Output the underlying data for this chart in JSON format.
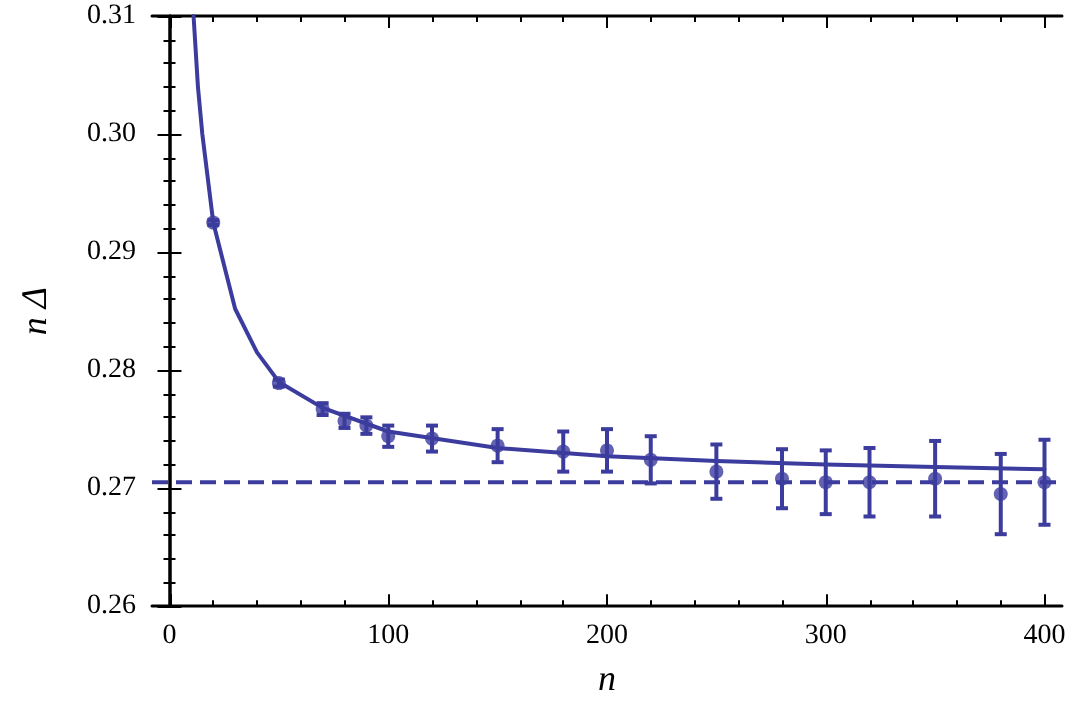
{
  "chart_data": {
    "type": "scatter",
    "xlabel": "n",
    "ylabel": "n Δ",
    "xlim": [
      -8,
      408
    ],
    "ylim": [
      0.26,
      0.31
    ],
    "xticks": [
      0,
      100,
      200,
      300,
      400
    ],
    "yticks": [
      0.26,
      0.27,
      0.28,
      0.29,
      {
        "value": 0.3,
        "label": "0.30"
      },
      0.31
    ],
    "grid": false,
    "marker": "circle",
    "series": [
      {
        "color": "#3c3c9e",
        "x": [
          20,
          50,
          70,
          80,
          90,
          100,
          120,
          150,
          180,
          200,
          220,
          250,
          280,
          300,
          320,
          350,
          380,
          400
        ],
        "values": [
          0.2925,
          0.2789,
          0.2767,
          0.2757,
          0.2753,
          0.2744,
          0.2742,
          0.2736,
          0.2731,
          0.2732,
          0.2724,
          0.2714,
          0.2708,
          0.2705,
          0.2705,
          0.2708,
          0.2695,
          0.2705
        ],
        "errors": [
          0.0002,
          0.0003,
          0.0005,
          0.0006,
          0.0007,
          0.0009,
          0.0011,
          0.0014,
          0.0017,
          0.0018,
          0.002,
          0.0023,
          0.0025,
          0.0027,
          0.0029,
          0.0032,
          0.0034,
          0.0036
        ]
      },
      {
        "type": "line",
        "color": "#3c3c9e",
        "marker": "none",
        "line_style": "solid",
        "x": [
          11,
          13,
          15,
          20,
          30,
          40,
          50,
          70,
          100,
          150,
          200,
          250,
          300,
          350,
          400
        ],
        "values": [
          0.31,
          0.304,
          0.3,
          0.2925,
          0.2852,
          0.2815,
          0.279,
          0.2768,
          0.2748,
          0.2734,
          0.2727,
          0.2723,
          0.272,
          0.2718,
          0.2716
        ]
      }
    ],
    "ref_lines": [
      {
        "axis": "y",
        "value": 0.2705,
        "color": "#3c3c9e",
        "line_style": "dashed"
      }
    ]
  }
}
